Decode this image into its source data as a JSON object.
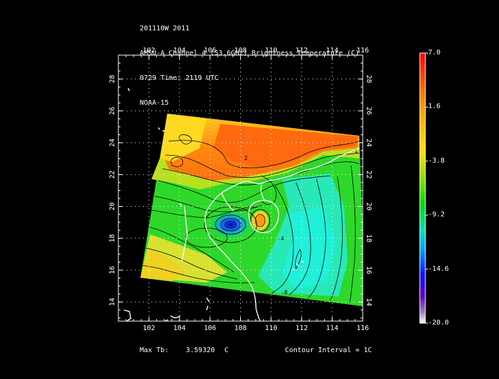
{
  "header": {
    "line1": "201110W 2011",
    "line2": "AMSU-A Channel 4 (53.6GHz) Brightness Temperature (C)",
    "line3": "0729 Time: 2119 UTC",
    "line4": "NOAA-15"
  },
  "map": {
    "lon_ticks": [
      "102",
      "104",
      "106",
      "108",
      "110",
      "112",
      "114",
      "116"
    ],
    "lat_ticks": [
      "14",
      "16",
      "18",
      "20",
      "22",
      "24",
      "26",
      "28"
    ],
    "lon_range": [
      100.0,
      116.0
    ],
    "lat_range": [
      12.8,
      29.5
    ],
    "grid": true,
    "contour_labels": [
      "2",
      "-1",
      "-4",
      "-8"
    ]
  },
  "colorbar": {
    "labels": [
      "7.0",
      "1.6",
      "-3.8",
      "-9.2",
      "-14.6",
      "-20.0"
    ],
    "values": [
      7.0,
      1.6,
      -3.8,
      -9.2,
      -14.6,
      -20.0
    ],
    "colors": [
      "#ff0000",
      "#ff9a00",
      "#ffd800",
      "#a8e000",
      "#00d800",
      "#00e0b0",
      "#0090ff",
      "#1010ff",
      "#6a00d0",
      "#ffffff"
    ]
  },
  "footer": {
    "max_label": "Max Tb:",
    "max_value": "3.59320",
    "max_unit": "C",
    "contour_interval": "Contour Interval = 1C"
  }
}
